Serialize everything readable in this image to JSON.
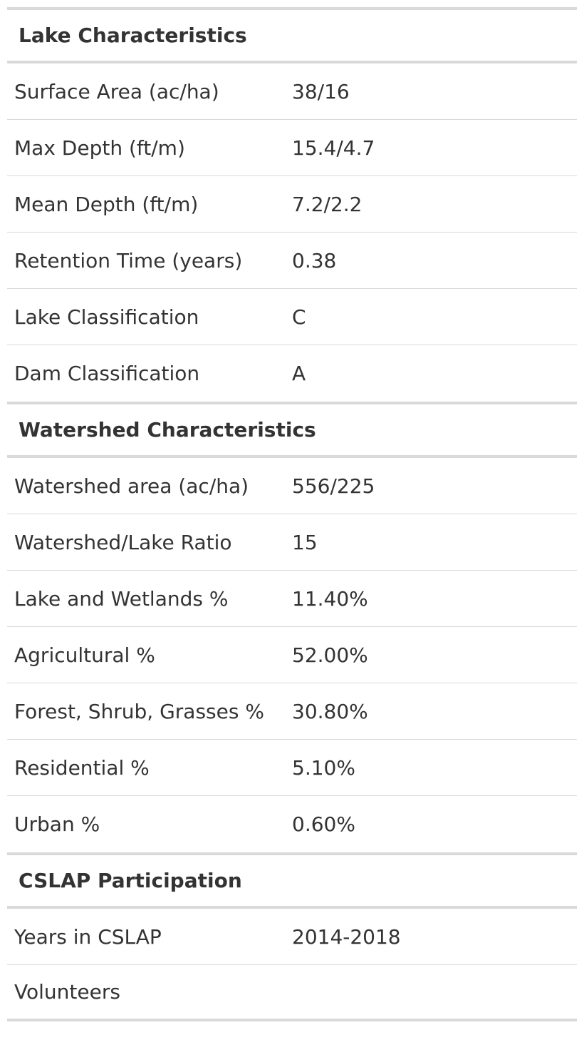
{
  "sections": [
    {
      "title": "Lake Characteristics",
      "rows": [
        {
          "label": "Surface Area (ac/ha)",
          "value": "38/16"
        },
        {
          "label": "Max Depth (ft/m)",
          "value": "15.4/4.7"
        },
        {
          "label": "Mean Depth (ft/m)",
          "value": "7.2/2.2"
        },
        {
          "label": "Retention Time (years)",
          "value": "0.38"
        },
        {
          "label": "Lake Classification",
          "value": "C"
        },
        {
          "label": "Dam Classification",
          "value": "A"
        }
      ]
    },
    {
      "title": "Watershed Characteristics",
      "rows": [
        {
          "label": "Watershed area (ac/ha)",
          "value": "556/225"
        },
        {
          "label": "Watershed/Lake Ratio",
          "value": "15"
        },
        {
          "label": "Lake and Wetlands %",
          "value": "11.40%"
        },
        {
          "label": "Agricultural %",
          "value": "52.00%"
        },
        {
          "label": "Forest, Shrub, Grasses %",
          "value": "30.80%"
        },
        {
          "label": "Residential %",
          "value": "5.10%"
        },
        {
          "label": "Urban %",
          "value": "0.60%"
        }
      ]
    },
    {
      "title": "CSLAP Participation",
      "rows": [
        {
          "label": "Years in CSLAP",
          "value": "2014-2018"
        },
        {
          "label": "Volunteers",
          "value": ""
        }
      ]
    }
  ]
}
